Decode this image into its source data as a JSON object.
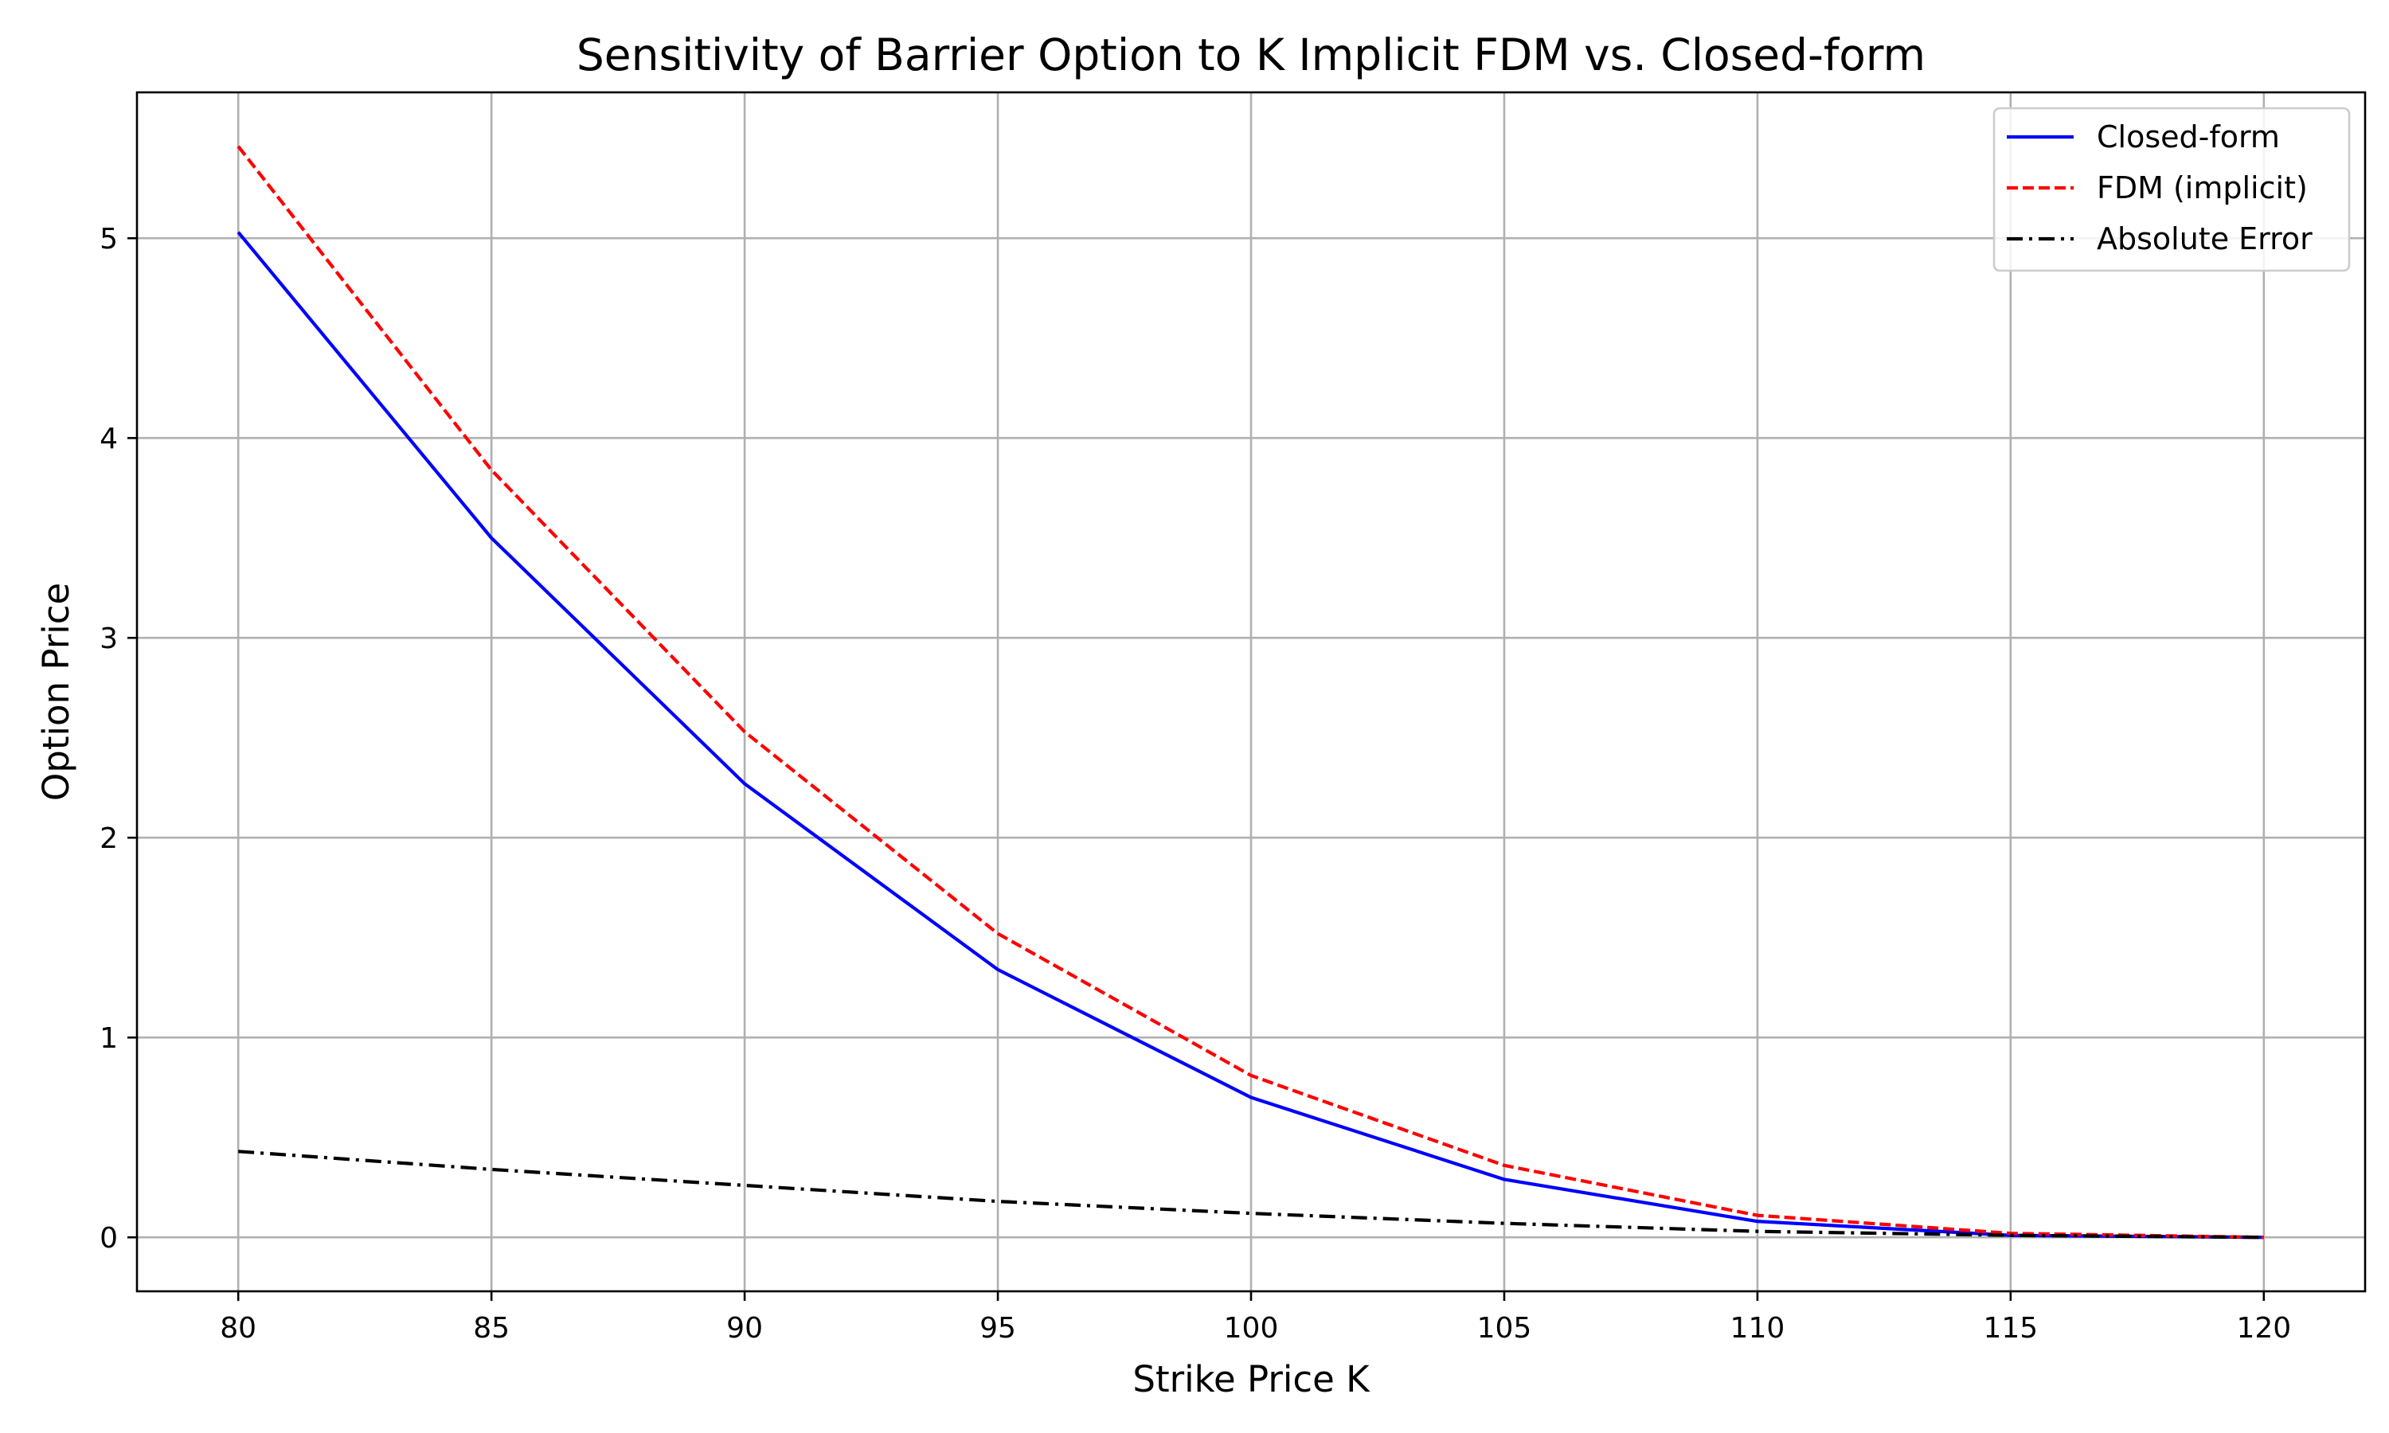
{
  "chart_data": {
    "type": "line",
    "title": "Sensitivity of Barrier Option to K Implicit FDM vs. Closed-form",
    "xlabel": "Strike Price K",
    "ylabel": "Option Price",
    "xlim": [
      78,
      122
    ],
    "ylim": [
      -0.27,
      5.73
    ],
    "xticks": [
      80,
      85,
      90,
      95,
      100,
      105,
      110,
      115,
      120
    ],
    "yticks": [
      0,
      1,
      2,
      3,
      4,
      5
    ],
    "grid": true,
    "legend_position": "top-right",
    "x": [
      80,
      85,
      90,
      95,
      100,
      105,
      110,
      115,
      120
    ],
    "series": [
      {
        "name": "Closed-form",
        "color": "#0000ff",
        "dash": "solid",
        "values": [
          5.03,
          3.5,
          2.27,
          1.34,
          0.7,
          0.29,
          0.08,
          0.01,
          0.0
        ]
      },
      {
        "name": "FDM (implicit)",
        "color": "#ff0000",
        "dash": "dashed",
        "values": [
          5.46,
          3.84,
          2.53,
          1.52,
          0.81,
          0.36,
          0.11,
          0.02,
          0.0
        ]
      },
      {
        "name": "Absolute Error",
        "color": "#000000",
        "dash": "dashdot",
        "values": [
          0.43,
          0.34,
          0.26,
          0.18,
          0.12,
          0.07,
          0.03,
          0.01,
          0.0
        ]
      }
    ]
  }
}
